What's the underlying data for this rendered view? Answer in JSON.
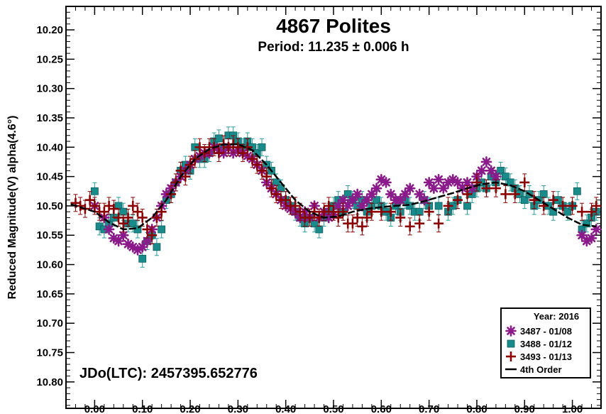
{
  "chart_data": {
    "type": "scatter",
    "title": "4867 Polites",
    "subtitle": "Period: 11.235 ± 0.006 h",
    "ylabel": "Reduced Magnitude(V) alpha(4.6°)",
    "xlabel": "",
    "annotation": "JDo(LTC): 2457395.652776",
    "xlim": [
      -0.06,
      1.06
    ],
    "ylim": [
      10.16,
      10.845
    ],
    "y_inverted": true,
    "x_ticks": [
      "0.00",
      "0.10",
      "0.20",
      "0.30",
      "0.40",
      "0.50",
      "0.60",
      "0.70",
      "0.80",
      "0.90",
      "1.00"
    ],
    "y_ticks": [
      "10.20",
      "10.25",
      "10.30",
      "10.35",
      "10.40",
      "10.45",
      "10.50",
      "10.55",
      "10.60",
      "10.65",
      "10.70",
      "10.75",
      "10.80"
    ],
    "legend": {
      "title": "Year: 2016",
      "position": "bottom-right"
    },
    "series": [
      {
        "name": "3487 - 01/08",
        "marker": "asterisk",
        "color": "#8b1a8b",
        "x": [
          0.0,
          0.02,
          0.03,
          0.04,
          0.05,
          0.06,
          0.07,
          0.08,
          0.09,
          0.1,
          0.11,
          0.12,
          0.13,
          0.14,
          0.15,
          0.16,
          0.17,
          0.18,
          0.19,
          0.2,
          0.21,
          0.22,
          0.23,
          0.24,
          0.25,
          0.26,
          0.27,
          0.28,
          0.29,
          0.3,
          0.31,
          0.32,
          0.33,
          0.34,
          0.35,
          0.36,
          0.37,
          0.38,
          0.39,
          0.4,
          0.41,
          0.42,
          0.43,
          0.44,
          0.45,
          0.46,
          0.47,
          0.48,
          0.49,
          0.5,
          0.51,
          0.52,
          0.53,
          0.54,
          0.55,
          0.56,
          0.57,
          0.58,
          0.59,
          0.6,
          0.61,
          0.62,
          0.63,
          0.64,
          0.65,
          0.66,
          0.68,
          0.69,
          0.7,
          0.71,
          0.72,
          0.73,
          0.74,
          0.75,
          0.76,
          0.77,
          0.78,
          0.79,
          0.8,
          0.81,
          0.82,
          0.83,
          0.84,
          1.02,
          1.03,
          1.04,
          1.05
        ],
        "values": [
          10.5,
          10.52,
          10.54,
          10.555,
          10.56,
          10.55,
          10.565,
          10.57,
          10.575,
          10.57,
          10.56,
          10.54,
          10.52,
          10.5,
          10.48,
          10.47,
          10.46,
          10.45,
          10.44,
          10.43,
          10.42,
          10.415,
          10.41,
          10.41,
          10.4,
          10.405,
          10.41,
          10.4,
          10.41,
          10.405,
          10.41,
          10.415,
          10.42,
          10.43,
          10.44,
          10.46,
          10.47,
          10.48,
          10.49,
          10.5,
          10.505,
          10.51,
          10.52,
          10.51,
          10.52,
          10.5,
          10.52,
          10.51,
          10.52,
          10.515,
          10.5,
          10.49,
          10.5,
          10.49,
          10.48,
          10.5,
          10.49,
          10.48,
          10.47,
          10.455,
          10.46,
          10.48,
          10.49,
          10.49,
          10.48,
          10.47,
          10.48,
          10.49,
          10.46,
          10.47,
          10.455,
          10.47,
          10.46,
          10.455,
          10.46,
          10.47,
          10.46,
          10.47,
          10.45,
          10.44,
          10.425,
          10.44,
          10.45,
          10.55,
          10.56,
          10.555,
          10.54
        ]
      },
      {
        "name": "3488 - 01/12",
        "marker": "square",
        "color": "#1a8b8b",
        "x": [
          0.0,
          0.01,
          0.02,
          0.03,
          0.04,
          0.05,
          0.06,
          0.07,
          0.08,
          0.09,
          0.1,
          0.11,
          0.12,
          0.13,
          0.14,
          0.15,
          0.16,
          0.17,
          0.18,
          0.19,
          0.2,
          0.21,
          0.22,
          0.23,
          0.24,
          0.25,
          0.26,
          0.27,
          0.28,
          0.29,
          0.3,
          0.31,
          0.32,
          0.33,
          0.34,
          0.35,
          0.36,
          0.37,
          0.38,
          0.39,
          0.4,
          0.41,
          0.42,
          0.43,
          0.44,
          0.45,
          0.46,
          0.47,
          0.48,
          0.49,
          0.5,
          0.51,
          0.52,
          0.53,
          0.54,
          0.55,
          0.56,
          0.57,
          0.58,
          0.59,
          0.6,
          0.61,
          0.62,
          0.63,
          0.64,
          0.65,
          0.66,
          0.67,
          0.68,
          0.69,
          0.7,
          0.72,
          0.74,
          0.75,
          0.76,
          0.78,
          0.79,
          0.8,
          0.81,
          0.82,
          0.83,
          0.84,
          0.85,
          0.86,
          0.87,
          0.88,
          0.89,
          0.9,
          0.91,
          0.92,
          0.93,
          0.94,
          0.95,
          0.96,
          0.97,
          0.98,
          0.99,
          1.0,
          1.01,
          1.02,
          1.03,
          1.04,
          1.05
        ],
        "values": [
          10.475,
          10.535,
          10.54,
          10.53,
          10.52,
          10.5,
          10.51,
          10.53,
          10.53,
          10.54,
          10.59,
          10.56,
          10.55,
          10.57,
          10.54,
          10.49,
          10.48,
          10.46,
          10.44,
          10.43,
          10.44,
          10.4,
          10.42,
          10.42,
          10.41,
          10.39,
          10.385,
          10.4,
          10.38,
          10.38,
          10.39,
          10.4,
          10.39,
          10.4,
          10.41,
          10.4,
          10.43,
          10.44,
          10.46,
          10.47,
          10.49,
          10.5,
          10.51,
          10.52,
          10.53,
          10.52,
          10.53,
          10.54,
          10.52,
          10.51,
          10.5,
          10.49,
          10.51,
          10.48,
          10.49,
          10.5,
          10.49,
          10.51,
          10.5,
          10.49,
          10.5,
          10.51,
          10.52,
          10.5,
          10.51,
          10.49,
          10.5,
          10.51,
          10.51,
          10.49,
          10.5,
          10.5,
          10.51,
          10.5,
          10.49,
          10.5,
          10.48,
          10.47,
          10.46,
          10.47,
          10.45,
          10.46,
          10.44,
          10.45,
          10.46,
          10.47,
          10.48,
          10.49,
          10.48,
          10.5,
          10.49,
          10.48,
          10.5,
          10.51,
          10.49,
          10.5,
          10.51,
          10.5,
          10.475,
          10.54,
          10.53,
          10.52,
          10.51
        ]
      },
      {
        "name": "3493 - 01/13",
        "marker": "plus",
        "color": "#8b0000",
        "x": [
          -0.04,
          -0.03,
          -0.02,
          -0.01,
          0.0,
          0.01,
          0.02,
          0.03,
          0.04,
          0.05,
          0.06,
          0.07,
          0.08,
          0.09,
          0.1,
          0.11,
          0.12,
          0.13,
          0.14,
          0.16,
          0.17,
          0.18,
          0.19,
          0.2,
          0.21,
          0.22,
          0.23,
          0.24,
          0.25,
          0.26,
          0.27,
          0.28,
          0.29,
          0.3,
          0.31,
          0.32,
          0.33,
          0.34,
          0.35,
          0.36,
          0.37,
          0.38,
          0.39,
          0.4,
          0.41,
          0.42,
          0.43,
          0.44,
          0.45,
          0.46,
          0.47,
          0.48,
          0.49,
          0.5,
          0.51,
          0.52,
          0.53,
          0.54,
          0.55,
          0.56,
          0.57,
          0.58,
          0.6,
          0.62,
          0.64,
          0.66,
          0.68,
          0.7,
          0.72,
          0.74,
          0.76,
          0.78,
          0.8,
          0.82,
          0.84,
          0.86,
          0.88,
          0.9,
          0.92,
          0.94,
          0.96,
          0.98,
          1.0,
          1.02,
          1.04,
          1.05
        ],
        "values": [
          10.495,
          10.5,
          10.505,
          10.49,
          10.5,
          10.51,
          10.51,
          10.5,
          10.505,
          10.52,
          10.53,
          10.52,
          10.5,
          10.51,
          10.52,
          10.54,
          10.55,
          10.52,
          10.51,
          10.48,
          10.46,
          10.44,
          10.45,
          10.43,
          10.42,
          10.4,
          10.41,
          10.4,
          10.4,
          10.41,
          10.395,
          10.4,
          10.395,
          10.4,
          10.41,
          10.4,
          10.42,
          10.43,
          10.44,
          10.45,
          10.47,
          10.48,
          10.49,
          10.49,
          10.5,
          10.5,
          10.51,
          10.52,
          10.52,
          10.51,
          10.52,
          10.51,
          10.5,
          10.51,
          10.52,
          10.51,
          10.53,
          10.53,
          10.52,
          10.535,
          10.52,
          10.51,
          10.51,
          10.51,
          10.52,
          10.535,
          10.53,
          10.51,
          10.53,
          10.5,
          10.49,
          10.48,
          10.46,
          10.47,
          10.47,
          10.48,
          10.48,
          10.46,
          10.49,
          10.5,
          10.49,
          10.5,
          10.5,
          10.51,
          10.51,
          10.5
        ]
      },
      {
        "name": "4th Order",
        "marker": "line",
        "color": "#000000",
        "x": [
          -0.05,
          0.0,
          0.03,
          0.06,
          0.09,
          0.12,
          0.15,
          0.18,
          0.21,
          0.24,
          0.27,
          0.3,
          0.33,
          0.36,
          0.39,
          0.42,
          0.45,
          0.48,
          0.51,
          0.54,
          0.57,
          0.6,
          0.63,
          0.66,
          0.69,
          0.72,
          0.75,
          0.78,
          0.81,
          0.84,
          0.87,
          0.9,
          0.93,
          0.96,
          0.99,
          1.02,
          1.05
        ],
        "values": [
          10.497,
          10.51,
          10.528,
          10.54,
          10.538,
          10.52,
          10.49,
          10.45,
          10.42,
          10.403,
          10.395,
          10.395,
          10.405,
          10.43,
          10.46,
          10.49,
          10.51,
          10.52,
          10.518,
          10.51,
          10.505,
          10.502,
          10.5,
          10.498,
          10.492,
          10.485,
          10.478,
          10.47,
          10.463,
          10.46,
          10.465,
          10.475,
          10.49,
          10.505,
          10.52,
          10.532,
          10.535
        ]
      }
    ]
  },
  "colors": {
    "background": "#ffffff",
    "frame": "#000000",
    "legend_border": "#000000"
  }
}
